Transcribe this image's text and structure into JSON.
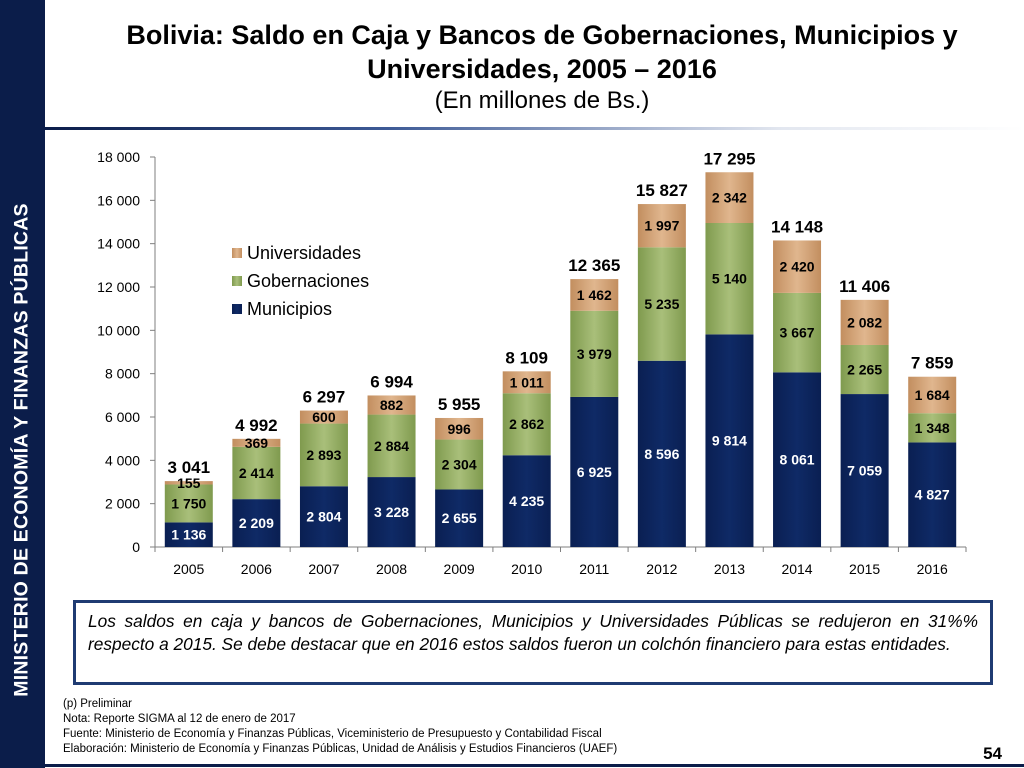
{
  "sidebar": {
    "label": "MINISTERIO DE ECONOMÍA Y FINANZAS PÚBLICAS"
  },
  "header": {
    "title_line1": "Bolivia: Saldo en Caja y Bancos de Gobernaciones, Municipios y",
    "title_line2": "Universidades, 2005 – 2016",
    "subtitle": "(En millones de Bs.)"
  },
  "colors": {
    "municipios": "#0f2a66",
    "gobernaciones": "#a9bf7a",
    "universidades": "#e0b68e",
    "sidebar": "#0b1d4a"
  },
  "chart_data": {
    "type": "bar",
    "stacked": true,
    "title": "Bolivia: Saldo en Caja y Bancos de Gobernaciones, Municipios y Universidades, 2005 – 2016",
    "ylabel": "En millones de Bs.",
    "xlabel": "",
    "ylim": [
      0,
      18000
    ],
    "yticks": [
      0,
      2000,
      4000,
      6000,
      8000,
      10000,
      12000,
      14000,
      16000,
      18000
    ],
    "ytick_labels": [
      "0",
      "2 000",
      "4 000",
      "6 000",
      "8 000",
      "10 000",
      "12 000",
      "14 000",
      "16 000",
      "18 000"
    ],
    "grid": false,
    "legend_position": "top-left",
    "categories": [
      "2005",
      "2006",
      "2007",
      "2008",
      "2009",
      "2010",
      "2011",
      "2012",
      "2013",
      "2014",
      "2015",
      "2016"
    ],
    "series": [
      {
        "name": "Municipios",
        "values": [
          1136,
          2209,
          2804,
          3228,
          2655,
          4235,
          6925,
          8596,
          9814,
          8061,
          7059,
          4827
        ],
        "labels": [
          "1 136",
          "2 209",
          "2 804",
          "3 228",
          "2 655",
          "4 235",
          "6 925",
          "8 596",
          "9 814",
          "8 061",
          "7 059",
          "4 827"
        ]
      },
      {
        "name": "Gobernaciones",
        "values": [
          1750,
          2414,
          2893,
          2884,
          2304,
          2862,
          3979,
          5235,
          5140,
          3667,
          2265,
          1348
        ],
        "labels": [
          "1 750",
          "2 414",
          "2 893",
          "2 884",
          "2 304",
          "2 862",
          "3 979",
          "5 235",
          "5 140",
          "3 667",
          "2 265",
          "1 348"
        ]
      },
      {
        "name": "Universidades",
        "values": [
          155,
          369,
          600,
          882,
          996,
          1011,
          1462,
          1997,
          2342,
          2420,
          2082,
          1684
        ],
        "labels": [
          "155",
          "369",
          "600",
          "882",
          "996",
          "1 011",
          "1 462",
          "1 997",
          "2 342",
          "2 420",
          "2 082",
          "1 684"
        ]
      }
    ],
    "totals": [
      3041,
      4992,
      6297,
      6994,
      5955,
      8109,
      12365,
      15827,
      17295,
      14148,
      11406,
      7859
    ],
    "total_labels": [
      "3 041",
      "4 992",
      "6 297",
      "6 994",
      "5 955",
      "8 109",
      "12 365",
      "15 827",
      "17 295",
      "14 148",
      "11 406",
      "7 859"
    ]
  },
  "comment": "Los saldos en caja y bancos de Gobernaciones, Municipios y Universidades Públicas se redujeron en 31%% respecto a 2015. Se debe destacar que en 2016 estos saldos fueron un colchón financiero para estas entidades.",
  "notes": {
    "preliminar": "(p) Preliminar",
    "nota": "Nota: Reporte SIGMA al 12 de enero de 2017",
    "fuente": "Fuente: Ministerio de Economía y Finanzas Públicas, Viceministerio de Presupuesto y Contabilidad Fiscal",
    "elaboracion": "Elaboración: Ministerio de Economía y Finanzas Públicas, Unidad de Análisis y Estudios Financieros (UAEF)"
  },
  "page_number": "54"
}
